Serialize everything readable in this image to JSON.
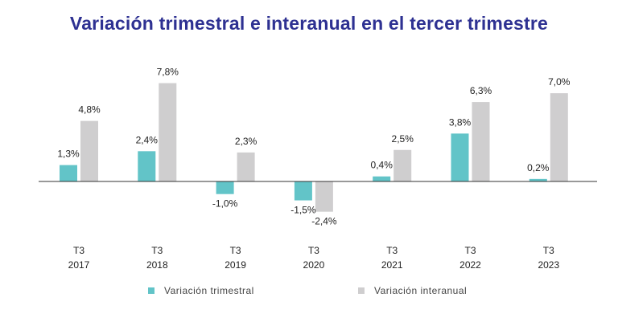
{
  "chart_data": {
    "type": "bar",
    "title": "Variación trimestral e interanual en el tercer trimestre",
    "categories": [
      [
        "T3",
        "2017"
      ],
      [
        "T3",
        "2018"
      ],
      [
        "T3",
        "2019"
      ],
      [
        "T3",
        "2020"
      ],
      [
        "T3",
        "2021"
      ],
      [
        "T3",
        "2022"
      ],
      [
        "T3",
        "2023"
      ]
    ],
    "series": [
      {
        "name": "Variación  trimestral",
        "color": "#62c4c8",
        "values": [
          1.3,
          2.4,
          -1.0,
          -1.5,
          0.4,
          3.8,
          0.2
        ],
        "labels": [
          "1,3%",
          "2,4%",
          "-1,0%",
          "-1,5%",
          "0,4%",
          "3,8%",
          "0,2%"
        ]
      },
      {
        "name": "Variación  interanual",
        "color": "#cfcecf",
        "values": [
          4.8,
          7.8,
          2.3,
          -2.4,
          2.5,
          6.3,
          7.0
        ],
        "labels": [
          "4,8%",
          "7,8%",
          "2,3%",
          "-2,4%",
          "2,5%",
          "6,3%",
          "7,0%"
        ]
      }
    ],
    "ylim": [
      -2.4,
      7.8
    ],
    "grid": false,
    "legend_position": "bottom",
    "title_color": "#2e3192"
  }
}
